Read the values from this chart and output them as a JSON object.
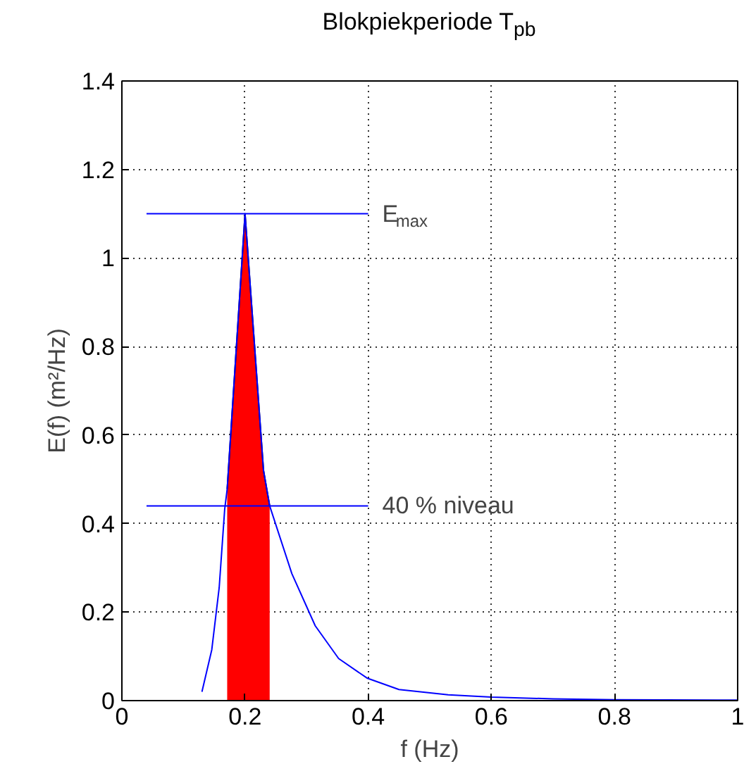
{
  "chart_data": {
    "type": "line",
    "title": "Blokpiekperiode T$_{pb}$",
    "xlabel": "f (Hz)",
    "ylabel": "E(f) (m²/Hz)",
    "xlim": [
      0,
      1
    ],
    "ylim": [
      0,
      1.4
    ],
    "xticks": [
      0,
      0.2,
      0.4,
      0.6,
      0.8,
      1
    ],
    "yticks": [
      0,
      0.2,
      0.4,
      0.6,
      0.8,
      1,
      1.2,
      1.4
    ],
    "grid": true,
    "series": [
      {
        "type": "area",
        "color": "#ff0000",
        "x": [
          0.171,
          0.2,
          0.23,
          0.24
        ],
        "values": [
          0.478,
          1.1,
          0.52,
          0.44
        ]
      },
      {
        "color": "#0000ff",
        "x": [
          0.13,
          0.146,
          0.158,
          0.167,
          0.171,
          0.2,
          0.23,
          0.24,
          0.276,
          0.314,
          0.352,
          0.398,
          0.45,
          0.53,
          0.6,
          0.7,
          0.8,
          1.0
        ],
        "values": [
          0.02,
          0.115,
          0.255,
          0.433,
          0.478,
          1.1,
          0.52,
          0.44,
          0.287,
          0.169,
          0.095,
          0.051,
          0.025,
          0.013,
          0.008,
          0.004,
          0.002,
          0.001
        ]
      },
      {
        "color": "#0000ff",
        "x": [
          0.04,
          0.4
        ],
        "values": [
          1.1,
          1.1
        ]
      },
      {
        "color": "#0000ff",
        "x": [
          0.04,
          0.4
        ],
        "values": [
          0.44,
          0.44
        ]
      }
    ],
    "annotations": [
      {
        "text": "E$_{max}$",
        "x": 0.4,
        "y": 1.1
      },
      {
        "text": "40 % niveau",
        "x": 0.4,
        "y": 0.44
      }
    ]
  }
}
